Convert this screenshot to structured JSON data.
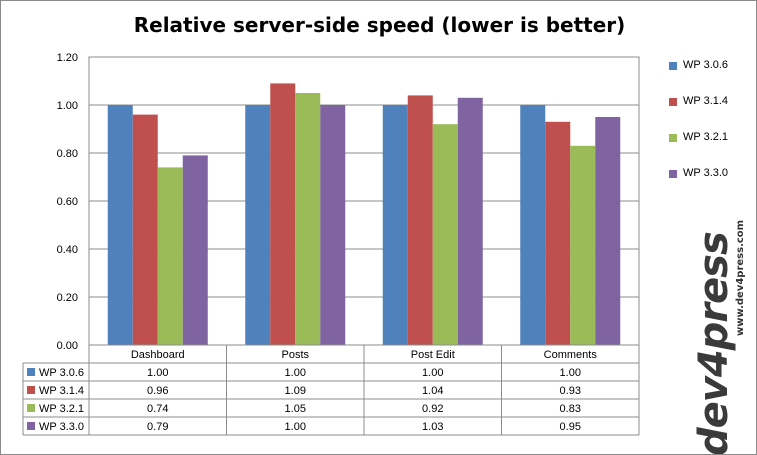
{
  "chart_data": {
    "type": "bar",
    "title": "Relative server-side speed (lower is better)",
    "categories": [
      "Dashboard",
      "Posts",
      "Post Edit",
      "Comments"
    ],
    "series": [
      {
        "name": "WP 3.0.6",
        "color": "#4f81bd",
        "values": [
          1.0,
          1.0,
          1.0,
          1.0
        ],
        "labels": [
          "1.00",
          "1.00",
          "1.00",
          "1.00"
        ]
      },
      {
        "name": "WP 3.1.4",
        "color": "#c0504d",
        "values": [
          0.96,
          1.09,
          1.04,
          0.93
        ],
        "labels": [
          "0.96",
          "1.09",
          "1.04",
          "0.93"
        ]
      },
      {
        "name": "WP 3.2.1",
        "color": "#9bbb59",
        "values": [
          0.74,
          1.05,
          0.92,
          0.83
        ],
        "labels": [
          "0.74",
          "1.05",
          "0.92",
          "0.83"
        ]
      },
      {
        "name": "WP 3.3.0",
        "color": "#8064a2",
        "values": [
          0.79,
          1.0,
          1.03,
          0.95
        ],
        "labels": [
          "0.79",
          "1.00",
          "1.03",
          "0.95"
        ]
      }
    ],
    "ylim": [
      0,
      1.2
    ],
    "yticks": [
      "0.00",
      "0.20",
      "0.40",
      "0.60",
      "0.80",
      "1.00",
      "1.20"
    ],
    "grid": true,
    "legend": "right",
    "data_table": true
  },
  "branding": {
    "logo_text": "dev4press",
    "url": "www.dev4press.com"
  }
}
